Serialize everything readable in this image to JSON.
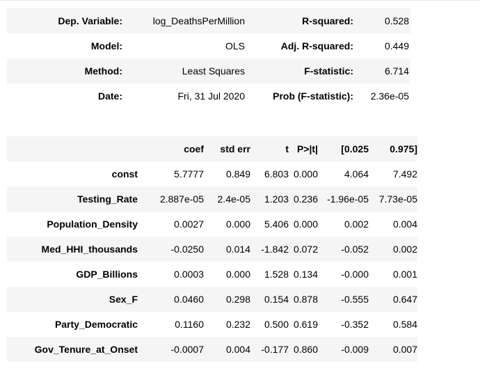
{
  "summary": {
    "rows": [
      {
        "label1": "Dep. Variable:",
        "value1": "log_DeathsPerMillion",
        "label2": "R-squared:",
        "value2": "0.528"
      },
      {
        "label1": "Model:",
        "value1": "OLS",
        "label2": "Adj. R-squared:",
        "value2": "0.449"
      },
      {
        "label1": "Method:",
        "value1": "Least Squares",
        "label2": "F-statistic:",
        "value2": "6.714"
      },
      {
        "label1": "Date:",
        "value1": "Fri, 31 Jul 2020",
        "label2": "Prob (F-statistic):",
        "value2": "2.36e-05"
      }
    ]
  },
  "coefficients": {
    "headers": [
      "",
      "coef",
      "std err",
      "t",
      "P>|t|",
      "[0.025",
      "0.975]"
    ],
    "rows": [
      {
        "name": "const",
        "coef": "5.7777",
        "std_err": "0.849",
        "t": "6.803",
        "p": "0.000",
        "ci_low": "4.064",
        "ci_high": "7.492"
      },
      {
        "name": "Testing_Rate",
        "coef": "2.887e-05",
        "std_err": "2.4e-05",
        "t": "1.203",
        "p": "0.236",
        "ci_low": "-1.96e-05",
        "ci_high": "7.73e-05"
      },
      {
        "name": "Population_Density",
        "coef": "0.0027",
        "std_err": "0.000",
        "t": "5.406",
        "p": "0.000",
        "ci_low": "0.002",
        "ci_high": "0.004"
      },
      {
        "name": "Med_HHI_thousands",
        "coef": "-0.0250",
        "std_err": "0.014",
        "t": "-1.842",
        "p": "0.072",
        "ci_low": "-0.052",
        "ci_high": "0.002"
      },
      {
        "name": "GDP_Billions",
        "coef": "0.0003",
        "std_err": "0.000",
        "t": "1.528",
        "p": "0.134",
        "ci_low": "-0.000",
        "ci_high": "0.001"
      },
      {
        "name": "Sex_F",
        "coef": "0.0460",
        "std_err": "0.298",
        "t": "0.154",
        "p": "0.878",
        "ci_low": "-0.555",
        "ci_high": "0.647"
      },
      {
        "name": "Party_Democratic",
        "coef": "0.1160",
        "std_err": "0.232",
        "t": "0.500",
        "p": "0.619",
        "ci_low": "-0.352",
        "ci_high": "0.584"
      },
      {
        "name": "Gov_Tenure_at_Onset",
        "coef": "-0.0007",
        "std_err": "0.004",
        "t": "-0.177",
        "p": "0.860",
        "ci_low": "-0.009",
        "ci_high": "0.007"
      }
    ]
  },
  "colors": {
    "shaded_row": "#f5f5f5",
    "text": "#000000"
  }
}
